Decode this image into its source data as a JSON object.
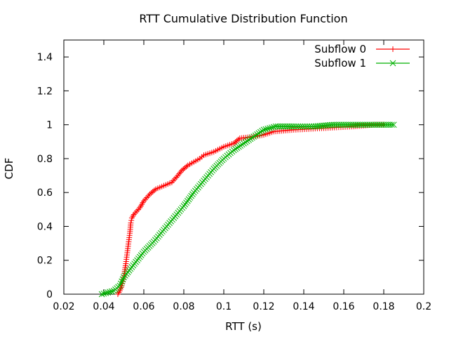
{
  "chart_data": {
    "type": "line",
    "title": "RTT Cumulative Distribution Function",
    "xlabel": "RTT (s)",
    "ylabel": "CDF",
    "xlim": [
      0.02,
      0.2
    ],
    "ylim": [
      0,
      1.5
    ],
    "xticks": [
      "0.02",
      "0.04",
      "0.06",
      "0.08",
      "0.1",
      "0.12",
      "0.14",
      "0.16",
      "0.18",
      "0.2"
    ],
    "yticks": [
      "0",
      "0.2",
      "0.4",
      "0.6",
      "0.8",
      "1",
      "1.2",
      "1.4"
    ],
    "grid": false,
    "legend_position": "top-right",
    "series": [
      {
        "name": "Subflow 0",
        "color": "#ff0000",
        "marker": "plus",
        "x": [
          0.047,
          0.048,
          0.049,
          0.05,
          0.051,
          0.052,
          0.053,
          0.0535,
          0.054,
          0.055,
          0.058,
          0.06,
          0.063,
          0.066,
          0.07,
          0.074,
          0.077,
          0.079,
          0.082,
          0.085,
          0.088,
          0.09,
          0.095,
          0.1,
          0.105,
          0.108,
          0.115,
          0.12,
          0.125,
          0.135,
          0.15,
          0.165,
          0.175,
          0.18
        ],
        "y": [
          0.0,
          0.02,
          0.05,
          0.1,
          0.18,
          0.27,
          0.36,
          0.42,
          0.45,
          0.47,
          0.51,
          0.55,
          0.59,
          0.62,
          0.64,
          0.66,
          0.7,
          0.73,
          0.76,
          0.78,
          0.8,
          0.82,
          0.84,
          0.87,
          0.89,
          0.92,
          0.93,
          0.94,
          0.96,
          0.97,
          0.98,
          0.99,
          1.0,
          1.0
        ]
      },
      {
        "name": "Subflow 1",
        "color": "#00b000",
        "marker": "x",
        "x": [
          0.039,
          0.042,
          0.045,
          0.048,
          0.05,
          0.052,
          0.054,
          0.056,
          0.06,
          0.065,
          0.07,
          0.075,
          0.08,
          0.085,
          0.09,
          0.095,
          0.1,
          0.105,
          0.11,
          0.115,
          0.12,
          0.123,
          0.126,
          0.135,
          0.145,
          0.155,
          0.165,
          0.175,
          0.185
        ],
        "y": [
          0.0,
          0.01,
          0.02,
          0.05,
          0.1,
          0.13,
          0.16,
          0.19,
          0.25,
          0.31,
          0.38,
          0.45,
          0.52,
          0.6,
          0.67,
          0.74,
          0.8,
          0.85,
          0.89,
          0.93,
          0.97,
          0.98,
          0.99,
          0.99,
          0.99,
          1.0,
          1.0,
          1.0,
          1.0
        ]
      }
    ]
  }
}
